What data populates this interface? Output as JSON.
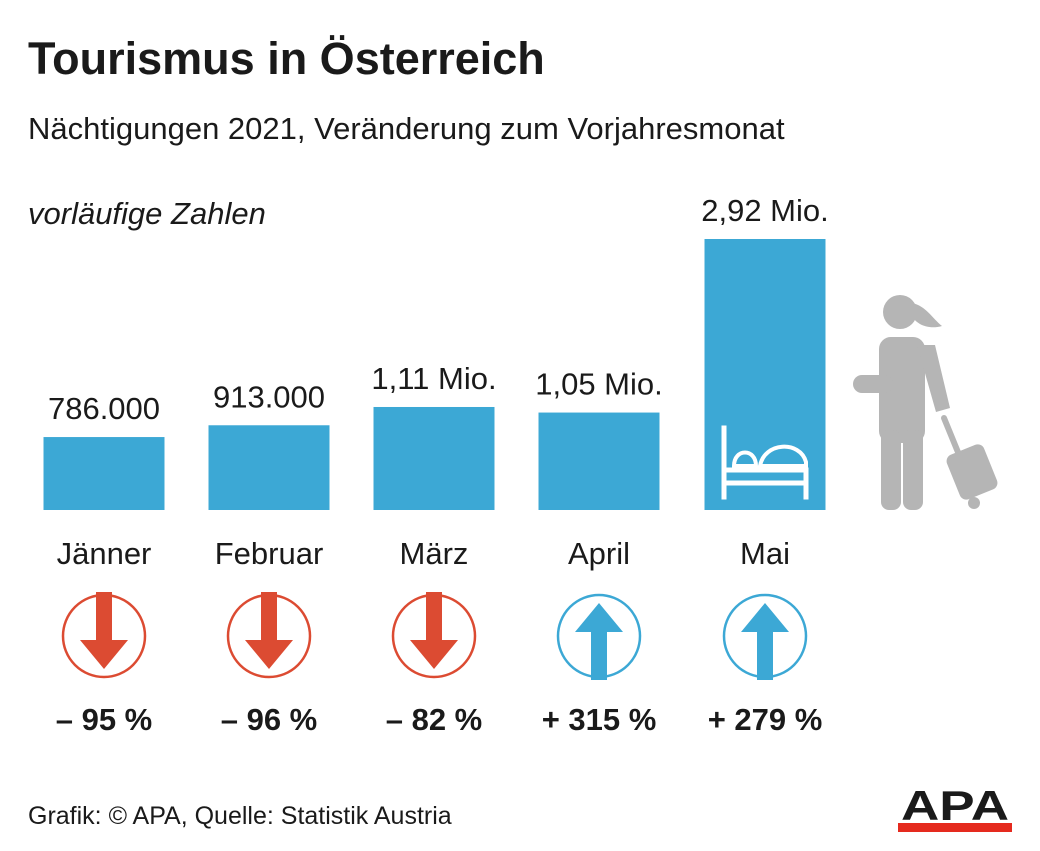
{
  "header": {
    "title": "Tourismus in Österreich",
    "subtitle": "Nächtigungen 2021, Veränderung zum Vorjahresmonat",
    "note": "vorläufige Zahlen"
  },
  "footer": {
    "source": "Grafik: © APA, Quelle: Statistik Austria",
    "logo_text": "APA"
  },
  "colors": {
    "bar": "#3ca8d5",
    "down": "#dc4b32",
    "up": "#3ca8d5",
    "figure": "#b5b5b5",
    "logo_red": "#e52a1e"
  },
  "chart_data": {
    "type": "bar",
    "title": "Tourismus in Österreich",
    "subtitle": "Nächtigungen 2021, Veränderung zum Vorjahresmonat",
    "categories": [
      "Jänner",
      "Februar",
      "März",
      "April",
      "Mai"
    ],
    "values": [
      786000,
      913000,
      1110000,
      1050000,
      2920000
    ],
    "value_labels": [
      "786.000",
      "913.000",
      "1,11 Mio.",
      "1,05 Mio.",
      "2,92 Mio."
    ],
    "changes": [
      {
        "direction": "down",
        "label": "– 95 %"
      },
      {
        "direction": "down",
        "label": "– 96 %"
      },
      {
        "direction": "down",
        "label": "– 82 %"
      },
      {
        "direction": "up",
        "label": "+ 315 %"
      },
      {
        "direction": "up",
        "label": "+ 279 %"
      }
    ],
    "icons": [
      "bed-icon",
      "traveler-with-suitcase-icon"
    ]
  }
}
